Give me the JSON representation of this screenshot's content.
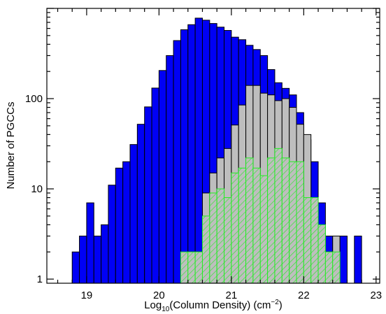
{
  "chart_data": {
    "type": "bar",
    "y_scale": "log",
    "ylim": [
      0.9,
      1000
    ],
    "xlim": [
      18.45,
      23.05
    ],
    "bin_width": 0.1,
    "x_ticks": [
      "19",
      "20",
      "21",
      "22",
      "23"
    ],
    "y_ticks": [
      "1",
      "10",
      "100"
    ],
    "xlabel": {
      "prefix": "Log",
      "sub": "10",
      "middle": "(Column Density) (cm",
      "sup": "−2",
      "suffix": ")"
    },
    "ylabel": "Number of PGCCs",
    "colors": {
      "all": "#0000f5",
      "subset": "#bebebe",
      "hatched": "#22ee22"
    },
    "series": [
      {
        "fill": "solid-blue",
        "bin_left_edges": [
          18.8,
          18.9,
          19.0,
          19.1,
          19.2,
          19.3,
          19.4,
          19.5,
          19.6,
          19.7,
          19.8,
          19.9,
          20.0,
          20.1,
          20.2,
          20.3,
          20.4,
          20.5,
          20.6,
          20.7,
          20.8,
          20.9,
          21.0,
          21.1,
          21.2,
          21.3,
          21.4,
          21.5,
          21.6,
          21.7,
          21.8,
          21.9,
          22.0,
          22.1,
          22.2,
          22.3,
          22.4,
          22.5,
          22.6,
          22.7
        ],
        "values": [
          2,
          3,
          7,
          3,
          4,
          11,
          17,
          20,
          31,
          52,
          81,
          131,
          205,
          300,
          440,
          580,
          660,
          780,
          740,
          680,
          620,
          570,
          480,
          450,
          390,
          350,
          300,
          210,
          150,
          130,
          110,
          70,
          35,
          20,
          7,
          3,
          2,
          3,
          0,
          3
        ]
      },
      {
        "fill": "solid-gray",
        "bin_left_edges": [
          20.4,
          20.5,
          20.6,
          20.7,
          20.8,
          20.9,
          21.0,
          21.1,
          21.2,
          21.3,
          21.4,
          21.5,
          21.6,
          21.7,
          21.8,
          21.9,
          22.0,
          22.1,
          22.2,
          22.3,
          22.4
        ],
        "values": [
          2,
          2,
          9,
          15,
          22,
          28,
          51,
          85,
          140,
          140,
          115,
          110,
          95,
          100,
          80,
          52,
          40,
          7,
          3,
          2,
          3
        ]
      },
      {
        "fill": "hatched-green",
        "bin_left_edges": [
          20.3,
          20.4,
          20.5,
          20.6,
          20.7,
          20.8,
          20.9,
          21.0,
          21.1,
          21.2,
          21.3,
          21.4,
          21.5,
          21.6,
          21.7,
          21.8,
          21.9,
          22.0,
          22.1,
          22.2,
          22.3,
          22.4
        ],
        "values": [
          2,
          2,
          2,
          5,
          9,
          10,
          8,
          15,
          17,
          22,
          17,
          14,
          22,
          28,
          22,
          20,
          20,
          8,
          8,
          4,
          2,
          2
        ]
      }
    ]
  }
}
